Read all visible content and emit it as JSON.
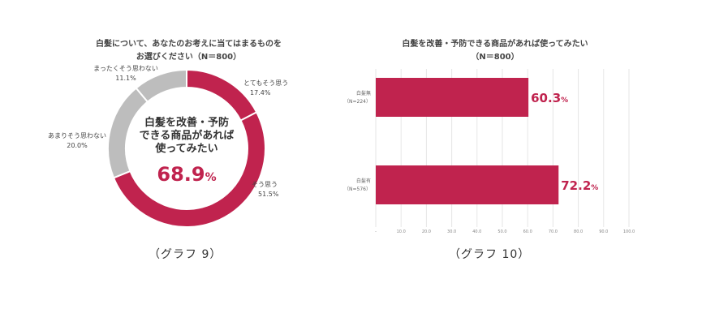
{
  "chart_data": [
    {
      "type": "pie",
      "title_line1": "白髪について、あなたのお考えに当てはまるものを",
      "title_line2": "お選びください（N＝800）",
      "center_lines": [
        "白髪を改善・予防",
        "できる商品があれば",
        "使ってみたい"
      ],
      "center_value_num": "68.9",
      "center_value_unit": "%",
      "slices": [
        {
          "label": "とてもそう思う",
          "display": "17.4%",
          "value": 17.4,
          "color": "#c0234e"
        },
        {
          "label": "そう思う",
          "display": "51.5%",
          "value": 51.5,
          "color": "#c0234e"
        },
        {
          "label": "あまりそう思わない",
          "display": "20.0%",
          "value": 20.0,
          "color": "#bdbdbd"
        },
        {
          "label": "まったくそう思わない",
          "display": "11.1%",
          "value": 11.1,
          "color": "#bdbdbd"
        }
      ],
      "caption": "（グラフ 9）"
    },
    {
      "type": "bar",
      "orientation": "horizontal",
      "title_line1": "白髪を改善・予防できる商品があれば使ってみたい",
      "title_line2": "（N＝800）",
      "categories": [
        {
          "name": "白髪無",
          "n": "（N=224）"
        },
        {
          "name": "白髪有",
          "n": "（N=576）"
        }
      ],
      "values": [
        60.3,
        72.2
      ],
      "value_labels": [
        "60.3",
        "72.2"
      ],
      "value_unit": "%",
      "xlim": [
        0,
        100
      ],
      "xticks": [
        "-",
        "10.0",
        "20.0",
        "30.0",
        "40.0",
        "50.0",
        "60.0",
        "70.0",
        "80.0",
        "90.0",
        "100.0"
      ],
      "grid": true,
      "bar_color": "#c0234e",
      "caption": "（グラフ 10）"
    }
  ]
}
